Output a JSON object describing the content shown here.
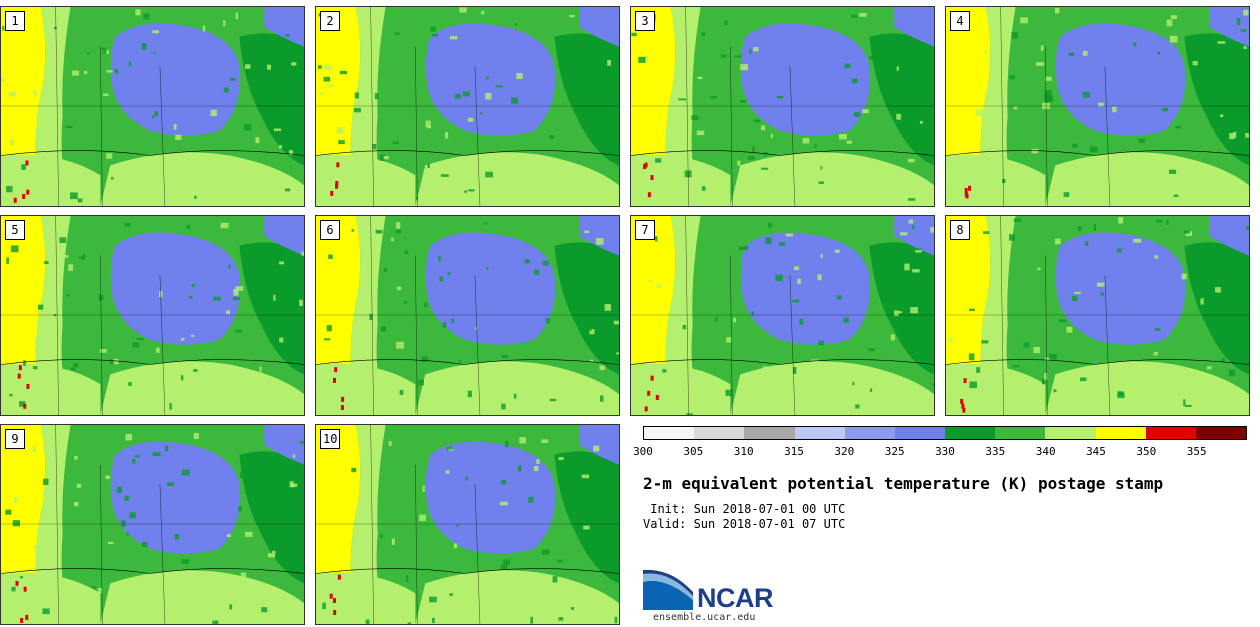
{
  "panels": [
    {
      "number": "1"
    },
    {
      "number": "2"
    },
    {
      "number": "3"
    },
    {
      "number": "4"
    },
    {
      "number": "5"
    },
    {
      "number": "6"
    },
    {
      "number": "7"
    },
    {
      "number": "8"
    },
    {
      "number": "9"
    },
    {
      "number": "10"
    }
  ],
  "colorbar": {
    "ticks": [
      "300",
      "305",
      "310",
      "315",
      "320",
      "325",
      "330",
      "335",
      "340",
      "345",
      "350",
      "355"
    ],
    "colors": [
      "#f5f5f5",
      "#d9d9d9",
      "#a8a8a8",
      "#bcc8f5",
      "#8a9cf0",
      "#7080ec",
      "#0a9b2a",
      "#3cb93c",
      "#b4f06e",
      "#ffff00",
      "#e00000",
      "#800000"
    ]
  },
  "title": "2-m equivalent potential temperature (K) postage stamp",
  "init": " Init: Sun 2018-07-01 00 UTC",
  "valid": "Valid: Sun 2018-07-01 07 UTC",
  "logo": {
    "name": "NCAR",
    "url": "ensemble.ucar.edu"
  },
  "map_colors": {
    "base_green": "#3cb93c",
    "dark_green": "#0a9b2a",
    "light_green": "#b4f06e",
    "yellow": "#ffff00",
    "blue": "#7080ec",
    "red": "#e00000"
  }
}
